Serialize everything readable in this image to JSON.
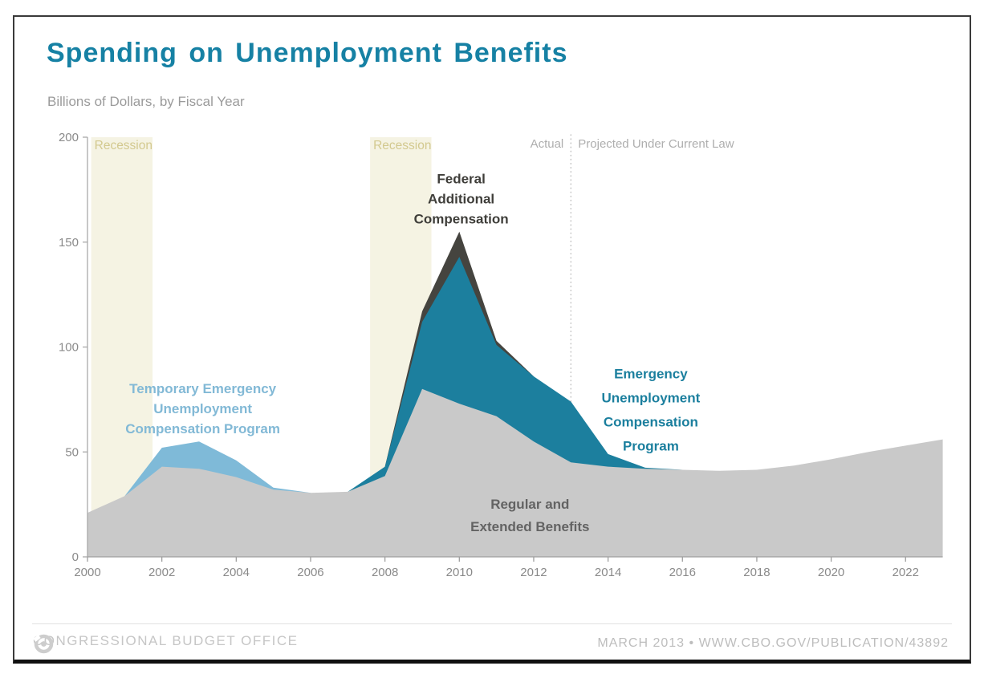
{
  "header": {
    "title": "Spending on Unemployment Benefits",
    "subtitle": "Billions of Dollars, by Fiscal Year"
  },
  "chart_data": {
    "type": "area",
    "stacked": true,
    "title": "Spending on Unemployment Benefits",
    "ylabel": "Billions of Dollars, by Fiscal Year",
    "ylim": [
      0,
      200
    ],
    "yticks": [
      0,
      50,
      100,
      150,
      200
    ],
    "xticks": [
      2000,
      2002,
      2004,
      2006,
      2008,
      2010,
      2012,
      2014,
      2016,
      2018,
      2020,
      2022
    ],
    "x": [
      2000,
      2001,
      2002,
      2003,
      2004,
      2005,
      2006,
      2007,
      2008,
      2009,
      2010,
      2011,
      2012,
      2013,
      2014,
      2015,
      2016,
      2017,
      2018,
      2019,
      2020,
      2021,
      2022,
      2023
    ],
    "series": [
      {
        "name": "Regular and Extended Benefits",
        "color": "#c9c9c9",
        "values": [
          21,
          29,
          43,
          42,
          38,
          32,
          30.5,
          31,
          38.5,
          80,
          73,
          67,
          55,
          45,
          43,
          42,
          41.5,
          41,
          41.5,
          43.5,
          46.5,
          50,
          53,
          56
        ]
      },
      {
        "name": "Temporary Emergency Unemployment Compensation Program",
        "color": "#7fbad8",
        "values": [
          0,
          0,
          9,
          13,
          8,
          1,
          0,
          0,
          0,
          0,
          0,
          0,
          0,
          0,
          0,
          0,
          0,
          0,
          0,
          0,
          0,
          0,
          0,
          0
        ]
      },
      {
        "name": "Emergency Unemployment Compensation Program",
        "color": "#1c7f9e",
        "values": [
          0,
          0,
          0,
          0,
          0,
          0,
          0,
          0,
          4.5,
          32,
          70,
          34,
          31,
          29,
          6,
          0.5,
          0,
          0,
          0,
          0,
          0,
          0,
          0,
          0
        ]
      },
      {
        "name": "Federal Additional Compensation",
        "color": "#45443f",
        "values": [
          0,
          0,
          0,
          0,
          0,
          0,
          0,
          0,
          0,
          5,
          12,
          2,
          0,
          0,
          0,
          0,
          0,
          0,
          0,
          0,
          0,
          0,
          0,
          0
        ]
      }
    ],
    "recessions": [
      {
        "label": "Recession",
        "from": 2000.1,
        "to": 2001.75
      },
      {
        "label": "Recession",
        "from": 2007.6,
        "to": 2009.25
      }
    ],
    "divider": {
      "year": 2013,
      "left_label": "Actual",
      "right_label": "Projected Under Current Law"
    },
    "annotations": [
      {
        "id": "federal-additional-compensation",
        "lines": [
          "Federal",
          "Additional",
          "Compensation"
        ],
        "x": 2010.05,
        "y": 178,
        "gap": 25,
        "size": 17,
        "color": "#3f3e3a"
      },
      {
        "id": "temporary-emergency-uc",
        "lines": [
          "Temporary Emergency",
          "Unemployment",
          "Compensation Program"
        ],
        "x": 2003.1,
        "y": 78,
        "gap": 25,
        "size": 17,
        "color": "#82b9d6"
      },
      {
        "id": "emergency-uc-program",
        "lines": [
          "Emergency",
          "Unemployment",
          "Compensation",
          "Program"
        ],
        "x": 2015.15,
        "y": 85,
        "gap": 30,
        "size": 17,
        "color": "#1b7f9e"
      },
      {
        "id": "regular-extended-benefits",
        "lines": [
          "Regular and",
          "Extended Benefits"
        ],
        "x": 2011.9,
        "y": 23,
        "gap": 28,
        "size": 17,
        "color": "#636363"
      }
    ],
    "legend_position": "in-plot labels",
    "grid": false
  },
  "footer": {
    "brand": "CONGRESSIONAL BUDGET OFFICE",
    "logo": "cbo-ring-logo",
    "right_text": "MARCH 2013 • WWW.CBO.GOV/PUBLICATION/43892"
  },
  "colors": {
    "title_teal": "#1681a4",
    "recession_band": "#f5f3e3",
    "recession_label": "#d3c98f",
    "axis_text": "#8a8a8a",
    "axis_line": "#a9a9a9",
    "divider_dots": "#c6c6c6",
    "divider_labels": "#aeaeae"
  }
}
